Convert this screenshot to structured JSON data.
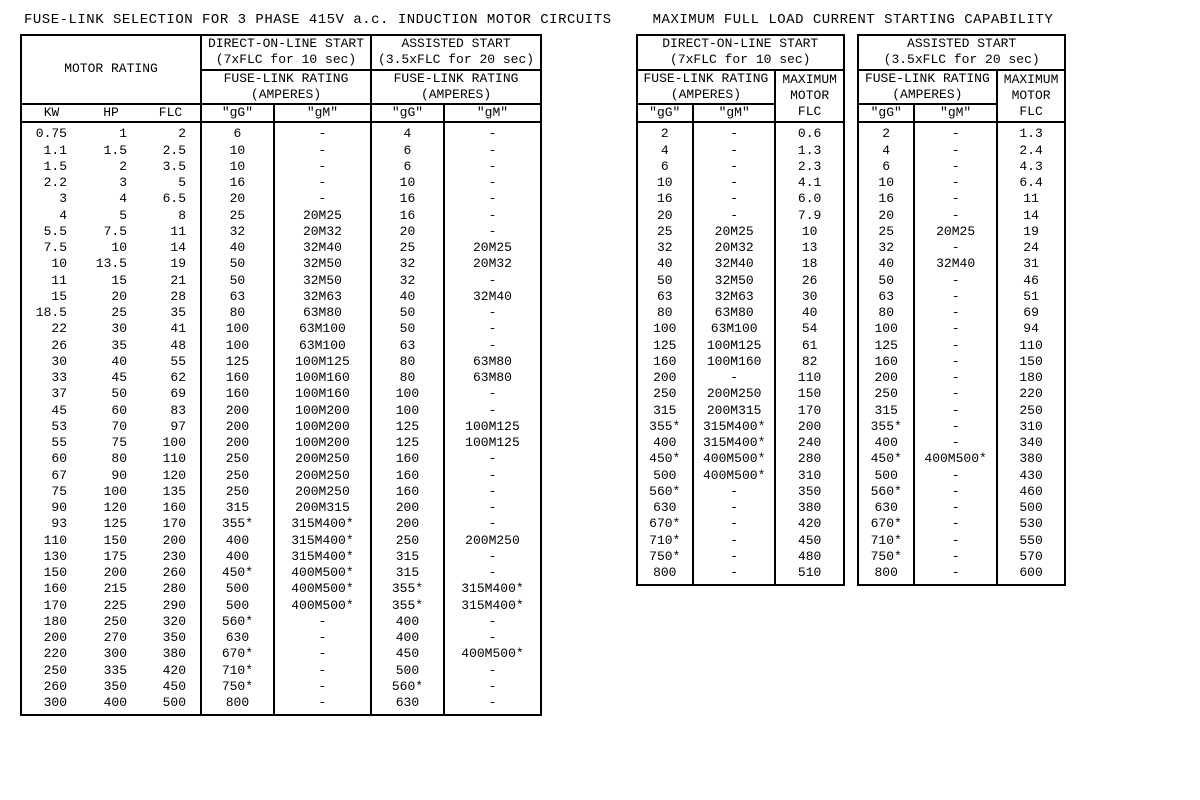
{
  "colors": {
    "fg": "#000000",
    "bg": "#ffffff",
    "border": "#000000"
  },
  "typography": {
    "family": "Courier New, monospace",
    "title_size_pt": 11,
    "body_size_pt": 10
  },
  "left": {
    "title": "FUSE-LINK SELECTION FOR 3 PHASE 415V a.c. INDUCTION MOTOR CIRCUITS",
    "headers": {
      "motor_rating": "MOTOR RATING",
      "dol": "DIRECT-ON-LINE START",
      "dol_sub": "(7xFLC for 10 sec)",
      "assist": "ASSISTED START",
      "assist_sub": "(3.5xFLC for 20 sec)",
      "fuse_rating": "FUSE-LINK RATING",
      "amperes": "(AMPERES)",
      "kw": "KW",
      "hp": "HP",
      "flc": "FLC",
      "gg": "\"gG\"",
      "gm": "\"gM\""
    },
    "rows": [
      {
        "kw": "0.75",
        "hp": "1",
        "flc": "2",
        "dgg": "6",
        "dgm": "-",
        "agg": "4",
        "agm": "-"
      },
      {
        "kw": "1.1",
        "hp": "1.5",
        "flc": "2.5",
        "dgg": "10",
        "dgm": "-",
        "agg": "6",
        "agm": "-"
      },
      {
        "kw": "1.5",
        "hp": "2",
        "flc": "3.5",
        "dgg": "10",
        "dgm": "-",
        "agg": "6",
        "agm": "-"
      },
      {
        "kw": "2.2",
        "hp": "3",
        "flc": "5",
        "dgg": "16",
        "dgm": "-",
        "agg": "10",
        "agm": "-"
      },
      {
        "kw": "3",
        "hp": "4",
        "flc": "6.5",
        "dgg": "20",
        "dgm": "-",
        "agg": "16",
        "agm": "-"
      },
      {
        "kw": "4",
        "hp": "5",
        "flc": "8",
        "dgg": "25",
        "dgm": "20M25",
        "agg": "16",
        "agm": "-"
      },
      {
        "kw": "5.5",
        "hp": "7.5",
        "flc": "11",
        "dgg": "32",
        "dgm": "20M32",
        "agg": "20",
        "agm": "-"
      },
      {
        "kw": "7.5",
        "hp": "10",
        "flc": "14",
        "dgg": "40",
        "dgm": "32M40",
        "agg": "25",
        "agm": "20M25"
      },
      {
        "kw": "10",
        "hp": "13.5",
        "flc": "19",
        "dgg": "50",
        "dgm": "32M50",
        "agg": "32",
        "agm": "20M32"
      },
      {
        "kw": "11",
        "hp": "15",
        "flc": "21",
        "dgg": "50",
        "dgm": "32M50",
        "agg": "32",
        "agm": "-"
      },
      {
        "kw": "15",
        "hp": "20",
        "flc": "28",
        "dgg": "63",
        "dgm": "32M63",
        "agg": "40",
        "agm": "32M40"
      },
      {
        "kw": "18.5",
        "hp": "25",
        "flc": "35",
        "dgg": "80",
        "dgm": "63M80",
        "agg": "50",
        "agm": "-"
      },
      {
        "kw": "22",
        "hp": "30",
        "flc": "41",
        "dgg": "100",
        "dgm": "63M100",
        "agg": "50",
        "agm": "-"
      },
      {
        "kw": "26",
        "hp": "35",
        "flc": "48",
        "dgg": "100",
        "dgm": "63M100",
        "agg": "63",
        "agm": "-"
      },
      {
        "kw": "30",
        "hp": "40",
        "flc": "55",
        "dgg": "125",
        "dgm": "100M125",
        "agg": "80",
        "agm": "63M80"
      },
      {
        "kw": "33",
        "hp": "45",
        "flc": "62",
        "dgg": "160",
        "dgm": "100M160",
        "agg": "80",
        "agm": "63M80"
      },
      {
        "kw": "37",
        "hp": "50",
        "flc": "69",
        "dgg": "160",
        "dgm": "100M160",
        "agg": "100",
        "agm": "-"
      },
      {
        "kw": "45",
        "hp": "60",
        "flc": "83",
        "dgg": "200",
        "dgm": "100M200",
        "agg": "100",
        "agm": "-"
      },
      {
        "kw": "53",
        "hp": "70",
        "flc": "97",
        "dgg": "200",
        "dgm": "100M200",
        "agg": "125",
        "agm": "100M125"
      },
      {
        "kw": "55",
        "hp": "75",
        "flc": "100",
        "dgg": "200",
        "dgm": "100M200",
        "agg": "125",
        "agm": "100M125"
      },
      {
        "kw": "60",
        "hp": "80",
        "flc": "110",
        "dgg": "250",
        "dgm": "200M250",
        "agg": "160",
        "agm": "-"
      },
      {
        "kw": "67",
        "hp": "90",
        "flc": "120",
        "dgg": "250",
        "dgm": "200M250",
        "agg": "160",
        "agm": "-"
      },
      {
        "kw": "75",
        "hp": "100",
        "flc": "135",
        "dgg": "250",
        "dgm": "200M250",
        "agg": "160",
        "agm": "-"
      },
      {
        "kw": "90",
        "hp": "120",
        "flc": "160",
        "dgg": "315",
        "dgm": "200M315",
        "agg": "200",
        "agm": "-"
      },
      {
        "kw": "93",
        "hp": "125",
        "flc": "170",
        "dgg": "355*",
        "dgm": "315M400*",
        "agg": "200",
        "agm": "-"
      },
      {
        "kw": "110",
        "hp": "150",
        "flc": "200",
        "dgg": "400",
        "dgm": "315M400*",
        "agg": "250",
        "agm": "200M250"
      },
      {
        "kw": "130",
        "hp": "175",
        "flc": "230",
        "dgg": "400",
        "dgm": "315M400*",
        "agg": "315",
        "agm": "-"
      },
      {
        "kw": "150",
        "hp": "200",
        "flc": "260",
        "dgg": "450*",
        "dgm": "400M500*",
        "agg": "315",
        "agm": "-"
      },
      {
        "kw": "160",
        "hp": "215",
        "flc": "280",
        "dgg": "500",
        "dgm": "400M500*",
        "agg": "355*",
        "agm": "315M400*"
      },
      {
        "kw": "170",
        "hp": "225",
        "flc": "290",
        "dgg": "500",
        "dgm": "400M500*",
        "agg": "355*",
        "agm": "315M400*"
      },
      {
        "kw": "180",
        "hp": "250",
        "flc": "320",
        "dgg": "560*",
        "dgm": "-",
        "agg": "400",
        "agm": "-"
      },
      {
        "kw": "200",
        "hp": "270",
        "flc": "350",
        "dgg": "630",
        "dgm": "-",
        "agg": "400",
        "agm": "-"
      },
      {
        "kw": "220",
        "hp": "300",
        "flc": "380",
        "dgg": "670*",
        "dgm": "-",
        "agg": "450",
        "agm": "400M500*"
      },
      {
        "kw": "250",
        "hp": "335",
        "flc": "420",
        "dgg": "710*",
        "dgm": "-",
        "agg": "500",
        "agm": "-"
      },
      {
        "kw": "260",
        "hp": "350",
        "flc": "450",
        "dgg": "750*",
        "dgm": "-",
        "agg": "560*",
        "agm": "-"
      },
      {
        "kw": "300",
        "hp": "400",
        "flc": "500",
        "dgg": "800",
        "dgm": "-",
        "agg": "630",
        "agm": "-"
      }
    ]
  },
  "right": {
    "title": "MAXIMUM FULL LOAD CURRENT STARTING CAPABILITY",
    "headers": {
      "dol": "DIRECT-ON-LINE START",
      "dol_sub": "(7xFLC for 10 sec)",
      "assist": "ASSISTED START",
      "assist_sub": "(3.5xFLC for 20 sec)",
      "fuse_rating": "FUSE-LINK RATING",
      "amperes": "(AMPERES)",
      "max_motor": "MAXIMUM",
      "max_motor2": "MOTOR",
      "flc": "FLC",
      "gg": "\"gG\"",
      "gm": "\"gM\""
    },
    "dol_rows": [
      {
        "gg": "2",
        "gm": "-",
        "flc": "0.6"
      },
      {
        "gg": "4",
        "gm": "-",
        "flc": "1.3"
      },
      {
        "gg": "6",
        "gm": "-",
        "flc": "2.3"
      },
      {
        "gg": "10",
        "gm": "-",
        "flc": "4.1"
      },
      {
        "gg": "16",
        "gm": "-",
        "flc": "6.0"
      },
      {
        "gg": "20",
        "gm": "-",
        "flc": "7.9"
      },
      {
        "gg": "25",
        "gm": "20M25",
        "flc": "10"
      },
      {
        "gg": "32",
        "gm": "20M32",
        "flc": "13"
      },
      {
        "gg": "40",
        "gm": "32M40",
        "flc": "18"
      },
      {
        "gg": "50",
        "gm": "32M50",
        "flc": "26"
      },
      {
        "gg": "63",
        "gm": "32M63",
        "flc": "30"
      },
      {
        "gg": "80",
        "gm": "63M80",
        "flc": "40"
      },
      {
        "gg": "100",
        "gm": "63M100",
        "flc": "54"
      },
      {
        "gg": "125",
        "gm": "100M125",
        "flc": "61"
      },
      {
        "gg": "160",
        "gm": "100M160",
        "flc": "82"
      },
      {
        "gg": "200",
        "gm": "-",
        "flc": "110"
      },
      {
        "gg": "250",
        "gm": "200M250",
        "flc": "150"
      },
      {
        "gg": "315",
        "gm": "200M315",
        "flc": "170"
      },
      {
        "gg": "355*",
        "gm": "315M400*",
        "flc": "200"
      },
      {
        "gg": "400",
        "gm": "315M400*",
        "flc": "240"
      },
      {
        "gg": "450*",
        "gm": "400M500*",
        "flc": "280"
      },
      {
        "gg": "500",
        "gm": "400M500*",
        "flc": "310"
      },
      {
        "gg": "560*",
        "gm": "-",
        "flc": "350"
      },
      {
        "gg": "630",
        "gm": "-",
        "flc": "380"
      },
      {
        "gg": "670*",
        "gm": "-",
        "flc": "420"
      },
      {
        "gg": "710*",
        "gm": "-",
        "flc": "450"
      },
      {
        "gg": "750*",
        "gm": "-",
        "flc": "480"
      },
      {
        "gg": "800",
        "gm": "-",
        "flc": "510"
      }
    ],
    "assist_rows": [
      {
        "gg": "2",
        "gm": "-",
        "flc": "1.3"
      },
      {
        "gg": "4",
        "gm": "-",
        "flc": "2.4"
      },
      {
        "gg": "6",
        "gm": "-",
        "flc": "4.3"
      },
      {
        "gg": "10",
        "gm": "-",
        "flc": "6.4"
      },
      {
        "gg": "16",
        "gm": "-",
        "flc": "11"
      },
      {
        "gg": "20",
        "gm": "-",
        "flc": "14"
      },
      {
        "gg": "25",
        "gm": "20M25",
        "flc": "19"
      },
      {
        "gg": "32",
        "gm": "-",
        "flc": "24"
      },
      {
        "gg": "40",
        "gm": "32M40",
        "flc": "31"
      },
      {
        "gg": "50",
        "gm": "-",
        "flc": "46"
      },
      {
        "gg": "63",
        "gm": "-",
        "flc": "51"
      },
      {
        "gg": "80",
        "gm": "-",
        "flc": "69"
      },
      {
        "gg": "100",
        "gm": "-",
        "flc": "94"
      },
      {
        "gg": "125",
        "gm": "-",
        "flc": "110"
      },
      {
        "gg": "160",
        "gm": "-",
        "flc": "150"
      },
      {
        "gg": "200",
        "gm": "-",
        "flc": "180"
      },
      {
        "gg": "250",
        "gm": "-",
        "flc": "220"
      },
      {
        "gg": "315",
        "gm": "-",
        "flc": "250"
      },
      {
        "gg": "355*",
        "gm": "-",
        "flc": "310"
      },
      {
        "gg": "400",
        "gm": "-",
        "flc": "340"
      },
      {
        "gg": "450*",
        "gm": "400M500*",
        "flc": "380"
      },
      {
        "gg": "500",
        "gm": "-",
        "flc": "430"
      },
      {
        "gg": "560*",
        "gm": "-",
        "flc": "460"
      },
      {
        "gg": "630",
        "gm": "-",
        "flc": "500"
      },
      {
        "gg": "670*",
        "gm": "-",
        "flc": "530"
      },
      {
        "gg": "710*",
        "gm": "-",
        "flc": "550"
      },
      {
        "gg": "750*",
        "gm": "-",
        "flc": "570"
      },
      {
        "gg": "800",
        "gm": "-",
        "flc": "600"
      }
    ]
  }
}
